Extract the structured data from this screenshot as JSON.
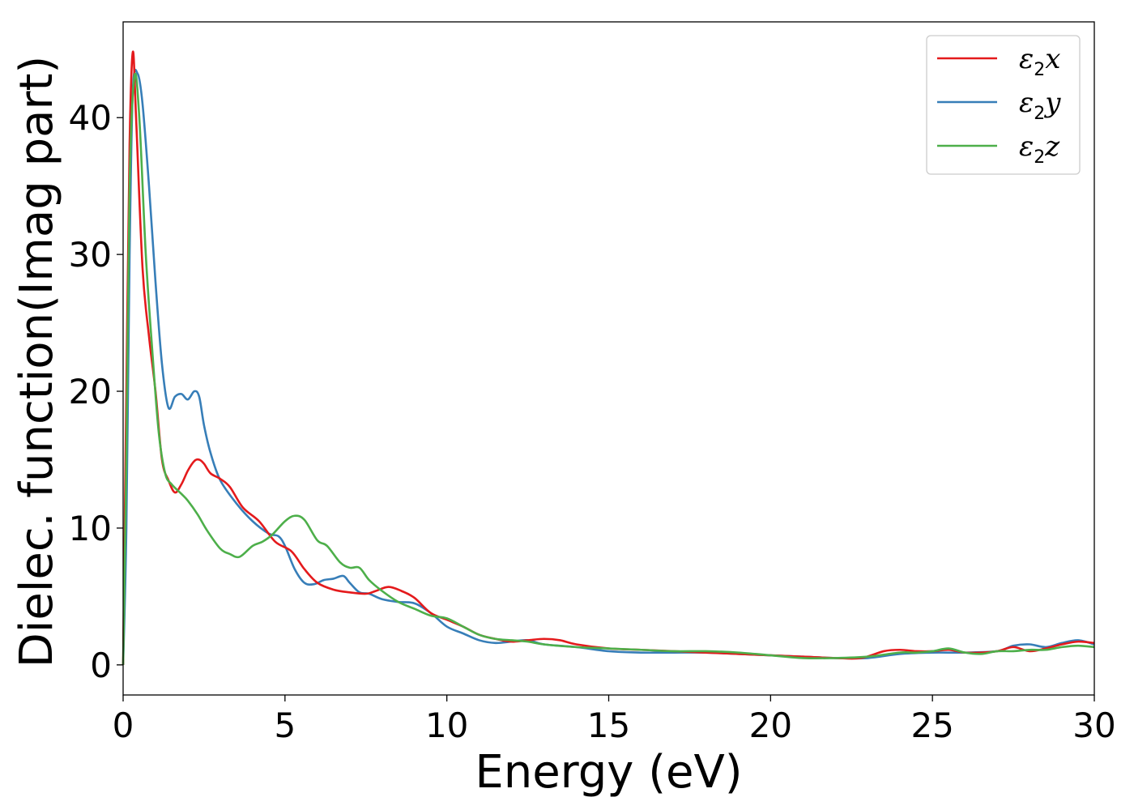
{
  "chart_data": {
    "type": "line",
    "title": "",
    "xlabel": "Energy (eV)",
    "ylabel": "Dielec. function(Imag part)",
    "xlim": [
      0,
      30
    ],
    "ylim": [
      -2.2,
      47
    ],
    "xticks": [
      "0",
      "5",
      "10",
      "15",
      "20",
      "25",
      "30"
    ],
    "yticks": [
      "0",
      "10",
      "20",
      "30",
      "40"
    ],
    "grid": false,
    "legend_position": "top-right",
    "series": [
      {
        "name": "ε2x",
        "legend_base": "ε",
        "legend_sub": "2",
        "legend_var": "x",
        "color": "#e41a1c",
        "x": [
          0,
          0.1,
          0.2,
          0.3,
          0.4,
          0.6,
          0.8,
          1.0,
          1.2,
          1.4,
          1.6,
          1.8,
          2.0,
          2.2,
          2.35,
          2.5,
          2.7,
          3.0,
          3.3,
          3.7,
          4.2,
          4.7,
          5.2,
          5.6,
          6.0,
          6.5,
          7.0,
          7.5,
          7.8,
          8.2,
          8.6,
          9.0,
          9.5,
          10.0,
          10.5,
          11.0,
          11.5,
          12.0,
          12.5,
          13.0,
          13.5,
          14.0,
          15.0,
          16.0,
          17.0,
          18.0,
          19.0,
          20.0,
          21.0,
          22.0,
          22.8,
          23.5,
          24.0,
          24.5,
          25.0,
          25.5,
          26.0,
          26.5,
          27.0,
          27.5,
          28.0,
          28.5,
          29.0,
          29.5,
          30.0
        ],
        "y": [
          0,
          20,
          38,
          44.8,
          40,
          29,
          24,
          20,
          15,
          13.5,
          12.6,
          13.2,
          14.2,
          14.9,
          15.0,
          14.7,
          14.0,
          13.6,
          13.0,
          11.5,
          10.5,
          9.0,
          8.3,
          7.0,
          6.0,
          5.5,
          5.3,
          5.2,
          5.4,
          5.7,
          5.4,
          4.9,
          3.8,
          3.3,
          2.8,
          2.2,
          1.9,
          1.7,
          1.8,
          1.9,
          1.8,
          1.5,
          1.2,
          1.1,
          1.0,
          0.9,
          0.8,
          0.7,
          0.6,
          0.5,
          0.5,
          1.0,
          1.1,
          1.0,
          1.0,
          1.1,
          0.9,
          0.9,
          1.0,
          1.3,
          1.0,
          1.2,
          1.5,
          1.7,
          1.6
        ]
      },
      {
        "name": "ε2y",
        "legend_base": "ε",
        "legend_sub": "2",
        "legend_var": "y",
        "color": "#377eb8",
        "x": [
          0,
          0.1,
          0.2,
          0.3,
          0.45,
          0.6,
          0.8,
          1.0,
          1.2,
          1.4,
          1.6,
          1.8,
          2.0,
          2.2,
          2.35,
          2.5,
          2.7,
          3.0,
          3.5,
          4.0,
          4.5,
          4.8,
          5.0,
          5.3,
          5.6,
          5.9,
          6.2,
          6.5,
          6.8,
          7.0,
          7.3,
          7.6,
          8.0,
          8.5,
          9.0,
          9.5,
          10.0,
          10.5,
          11.0,
          11.5,
          12.0,
          12.5,
          13.0,
          14.0,
          15.0,
          16.0,
          17.0,
          18.0,
          19.0,
          20.0,
          21.0,
          22.0,
          23.0,
          24.0,
          25.0,
          26.0,
          27.0,
          27.5,
          28.0,
          28.5,
          29.0,
          29.5,
          30.0
        ],
        "y": [
          0,
          10,
          30,
          42.0,
          43.2,
          41,
          35,
          28,
          22,
          18.8,
          19.6,
          19.8,
          19.4,
          20.0,
          19.6,
          17.5,
          15.5,
          13.5,
          11.8,
          10.5,
          9.6,
          9.4,
          8.7,
          7.0,
          6.0,
          5.9,
          6.2,
          6.3,
          6.5,
          6.0,
          5.3,
          5.2,
          4.8,
          4.6,
          4.5,
          3.8,
          2.8,
          2.3,
          1.8,
          1.6,
          1.7,
          1.8,
          1.5,
          1.3,
          1.0,
          0.9,
          0.9,
          0.9,
          0.8,
          0.7,
          0.6,
          0.5,
          0.5,
          0.8,
          0.9,
          0.9,
          1.0,
          1.4,
          1.5,
          1.3,
          1.6,
          1.8,
          1.5
        ]
      },
      {
        "name": "ε2z",
        "legend_base": "ε",
        "legend_sub": "2",
        "legend_var": "z",
        "color": "#4daf4a",
        "x": [
          0,
          0.1,
          0.2,
          0.35,
          0.5,
          0.7,
          0.9,
          1.1,
          1.3,
          1.5,
          1.8,
          2.0,
          2.3,
          2.6,
          3.0,
          3.3,
          3.6,
          4.0,
          4.3,
          4.6,
          5.0,
          5.3,
          5.6,
          6.0,
          6.3,
          6.7,
          7.0,
          7.3,
          7.6,
          8.0,
          8.5,
          9.0,
          9.5,
          10.0,
          10.5,
          11.0,
          11.5,
          12.0,
          12.5,
          13.0,
          14.0,
          15.0,
          16.0,
          17.0,
          18.0,
          19.0,
          20.0,
          21.0,
          22.0,
          23.0,
          24.0,
          24.5,
          25.0,
          25.5,
          26.0,
          26.5,
          27.0,
          27.5,
          28.0,
          28.5,
          29.0,
          29.5,
          30.0
        ],
        "y": [
          0,
          15,
          35,
          43.0,
          40,
          30,
          23,
          17,
          14,
          13.2,
          12.5,
          12.0,
          11.0,
          9.8,
          8.5,
          8.1,
          7.9,
          8.7,
          9.0,
          9.5,
          10.5,
          10.9,
          10.6,
          9.1,
          8.7,
          7.5,
          7.1,
          7.1,
          6.2,
          5.4,
          4.6,
          4.1,
          3.6,
          3.4,
          2.8,
          2.2,
          1.9,
          1.8,
          1.7,
          1.5,
          1.3,
          1.2,
          1.1,
          1.0,
          1.0,
          0.9,
          0.7,
          0.5,
          0.5,
          0.6,
          0.9,
          0.9,
          1.0,
          1.2,
          0.9,
          0.8,
          1.0,
          1.0,
          1.1,
          1.1,
          1.3,
          1.4,
          1.3
        ]
      }
    ]
  }
}
